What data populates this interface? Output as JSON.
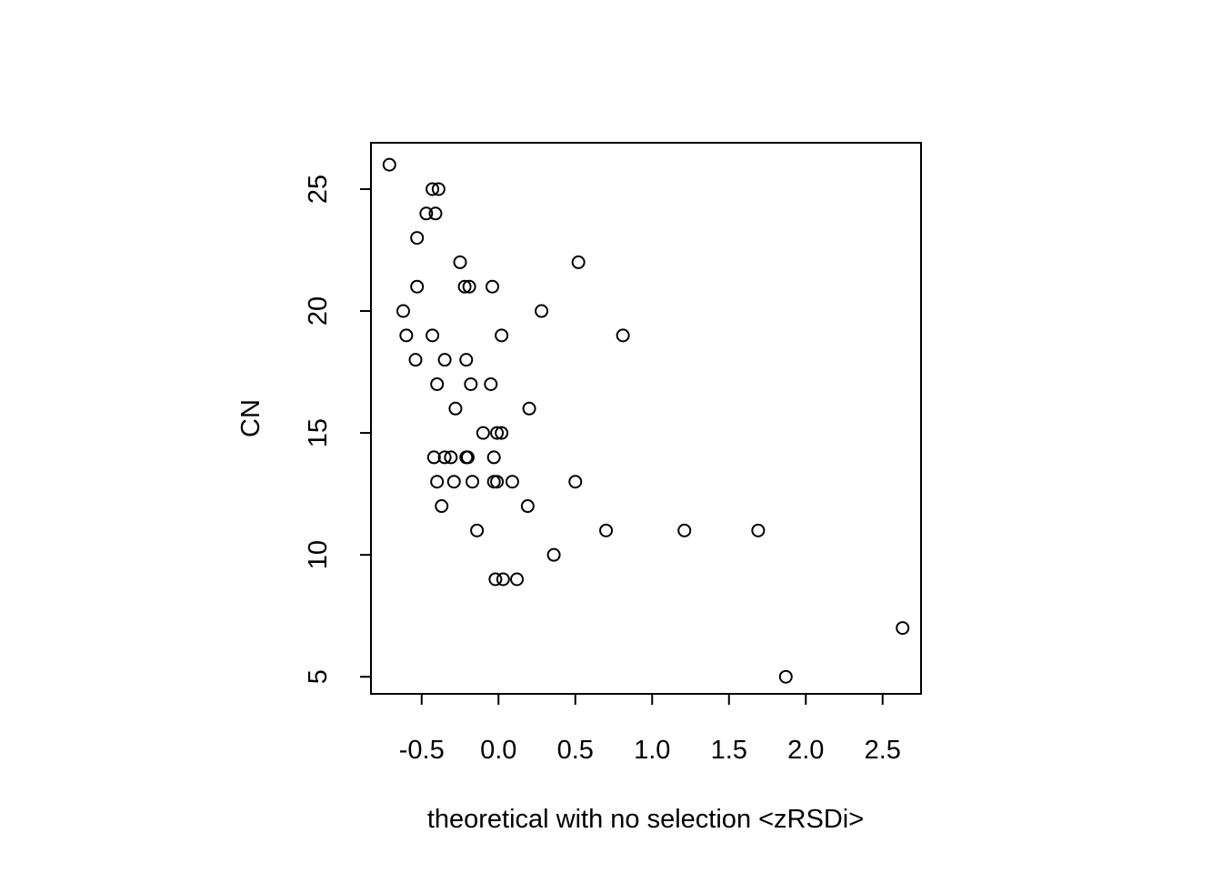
{
  "chart_data": {
    "type": "scatter",
    "title": "",
    "xlabel": "theoretical with no selection <zRSDi>",
    "ylabel": "CN",
    "xlim": [
      -0.83,
      2.75
    ],
    "ylim": [
      4.3,
      26.9
    ],
    "xticks": [
      -0.5,
      0.0,
      0.5,
      1.0,
      1.5,
      2.0,
      2.5
    ],
    "xtick_labels": [
      "-0.5",
      "0.0",
      "0.5",
      "1.0",
      "1.5",
      "2.0",
      "2.5"
    ],
    "yticks": [
      5,
      10,
      15,
      20,
      25
    ],
    "ytick_labels": [
      "5",
      "10",
      "15",
      "20",
      "25"
    ],
    "grid": false,
    "legend": "none",
    "points": [
      {
        "x": -0.71,
        "y": 26
      },
      {
        "x": -0.43,
        "y": 25
      },
      {
        "x": -0.39,
        "y": 25
      },
      {
        "x": -0.47,
        "y": 24
      },
      {
        "x": -0.41,
        "y": 24
      },
      {
        "x": -0.53,
        "y": 23
      },
      {
        "x": -0.25,
        "y": 22
      },
      {
        "x": 0.52,
        "y": 22
      },
      {
        "x": -0.53,
        "y": 21
      },
      {
        "x": -0.22,
        "y": 21
      },
      {
        "x": -0.19,
        "y": 21
      },
      {
        "x": -0.04,
        "y": 21
      },
      {
        "x": -0.62,
        "y": 20
      },
      {
        "x": 0.28,
        "y": 20
      },
      {
        "x": -0.6,
        "y": 19
      },
      {
        "x": -0.43,
        "y": 19
      },
      {
        "x": 0.02,
        "y": 19
      },
      {
        "x": 0.81,
        "y": 19
      },
      {
        "x": -0.54,
        "y": 18
      },
      {
        "x": -0.35,
        "y": 18
      },
      {
        "x": -0.21,
        "y": 18
      },
      {
        "x": -0.4,
        "y": 17
      },
      {
        "x": -0.18,
        "y": 17
      },
      {
        "x": -0.05,
        "y": 17
      },
      {
        "x": -0.28,
        "y": 16
      },
      {
        "x": 0.2,
        "y": 16
      },
      {
        "x": -0.1,
        "y": 15
      },
      {
        "x": -0.01,
        "y": 15
      },
      {
        "x": 0.02,
        "y": 15
      },
      {
        "x": -0.42,
        "y": 14
      },
      {
        "x": -0.35,
        "y": 14
      },
      {
        "x": -0.31,
        "y": 14
      },
      {
        "x": -0.21,
        "y": 14
      },
      {
        "x": -0.2,
        "y": 14
      },
      {
        "x": -0.03,
        "y": 14
      },
      {
        "x": -0.4,
        "y": 13
      },
      {
        "x": -0.29,
        "y": 13
      },
      {
        "x": -0.17,
        "y": 13
      },
      {
        "x": -0.03,
        "y": 13
      },
      {
        "x": -0.01,
        "y": 13
      },
      {
        "x": 0.09,
        "y": 13
      },
      {
        "x": 0.5,
        "y": 13
      },
      {
        "x": -0.37,
        "y": 12
      },
      {
        "x": 0.19,
        "y": 12
      },
      {
        "x": -0.14,
        "y": 11
      },
      {
        "x": 0.7,
        "y": 11
      },
      {
        "x": 1.21,
        "y": 11
      },
      {
        "x": 1.69,
        "y": 11
      },
      {
        "x": 0.36,
        "y": 10
      },
      {
        "x": -0.02,
        "y": 9
      },
      {
        "x": 0.03,
        "y": 9
      },
      {
        "x": 0.12,
        "y": 9
      },
      {
        "x": 2.63,
        "y": 7
      },
      {
        "x": 1.87,
        "y": 5
      }
    ]
  }
}
